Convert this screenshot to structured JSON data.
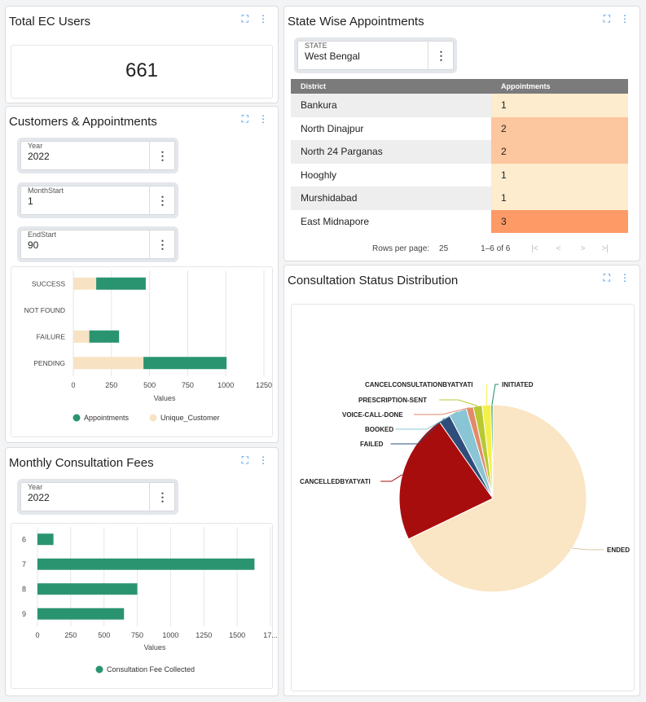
{
  "total_ec": {
    "title": "Total EC Users",
    "value": "661",
    "icons": [
      "expand-icon",
      "more-vert-icon"
    ]
  },
  "customers": {
    "title": "Customers & Appointments",
    "filters": [
      {
        "label": "Year",
        "value": "2022"
      },
      {
        "label": "MonthStart",
        "value": "1"
      },
      {
        "label": "EndStart",
        "value": "90"
      }
    ],
    "chart_data": {
      "type": "bar",
      "orientation": "horizontal",
      "stacked": true,
      "categories": [
        "SUCCESS",
        "NOT FOUND",
        "FAILURE",
        "PENDING"
      ],
      "series": [
        {
          "name": "Unique_Customer",
          "color": "#f7e3c3",
          "values": [
            150,
            0,
            105,
            460
          ]
        },
        {
          "name": "Appointments",
          "color": "#2a9470",
          "values": [
            325,
            0,
            195,
            545
          ]
        }
      ],
      "xlabel": "Values",
      "xlim": [
        0,
        1250
      ],
      "xticks": [
        "0",
        "250",
        "500",
        "750",
        "1000",
        "1250"
      ],
      "legend": [
        "Appointments",
        "Unique_Customer"
      ],
      "grid": true
    }
  },
  "monthly": {
    "title": "Monthly Consultation Fees",
    "filter": {
      "label": "Year",
      "value": "2022"
    },
    "chart_data": {
      "type": "bar",
      "orientation": "horizontal",
      "categories": [
        "6",
        "7",
        "8",
        "9"
      ],
      "series": [
        {
          "name": "Consultation Fee Collected",
          "color": "#2a9470",
          "values": [
            120,
            1630,
            750,
            650
          ]
        }
      ],
      "xlabel": "Values",
      "xlim": [
        0,
        1750
      ],
      "xticks": [
        "0",
        "250",
        "500",
        "750",
        "1000",
        "1250",
        "1500",
        "17..."
      ],
      "grid": true
    }
  },
  "state": {
    "title": "State Wise Appointments",
    "select": {
      "label": "STATE",
      "value": "West Bengal"
    },
    "table": {
      "headers": [
        "District",
        "Appointments"
      ],
      "rows": [
        {
          "district": "Bankura",
          "appointments": "1",
          "color": "#fdeccd"
        },
        {
          "district": "North Dinajpur",
          "appointments": "2",
          "color": "#fcc69e"
        },
        {
          "district": "North 24 Parganas",
          "appointments": "2",
          "color": "#fcc69e"
        },
        {
          "district": "Hooghly",
          "appointments": "1",
          "color": "#fdeccd"
        },
        {
          "district": "Murshidabad",
          "appointments": "1",
          "color": "#fdeccd"
        },
        {
          "district": "East Midnapore",
          "appointments": "3",
          "color": "#fd9a66"
        }
      ]
    },
    "pager": {
      "rows_label": "Rows per page:",
      "rows_value": "25",
      "range": "1–6 of 6"
    }
  },
  "consult": {
    "title": "Consultation Status Distribution",
    "chart_data": {
      "type": "pie",
      "slices": [
        {
          "label": "ENDED",
          "value": 66.5,
          "color": "#fae5c4"
        },
        {
          "label": "CANCELLEDBYATYATI",
          "value": 22.0,
          "color": "#a80d0d"
        },
        {
          "label": "FAILED",
          "value": 2.0,
          "color": "#2e4d7a"
        },
        {
          "label": "BOOKED",
          "value": 3.0,
          "color": "#89c5d4"
        },
        {
          "label": "VOICE-CALL-DONE",
          "value": 1.2,
          "color": "#e28a6a"
        },
        {
          "label": "PRESCRIPTION-SENT",
          "value": 1.5,
          "color": "#b9c832"
        },
        {
          "label": "CANCELCONSULTATIONBYATYATI",
          "value": 1.5,
          "color": "#f4f04a"
        },
        {
          "label": "INITIATED",
          "value": 0.3,
          "color": "#1f8a6a"
        }
      ]
    }
  }
}
